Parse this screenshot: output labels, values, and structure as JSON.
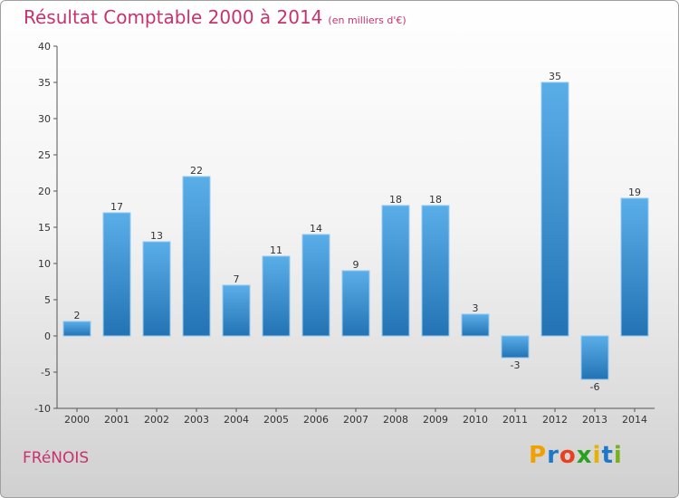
{
  "header": {
    "title": "Résultat Comptable 2000 à 2014",
    "subtitle": "(en milliers d'€)"
  },
  "footer": {
    "commune": "FRéNOIS",
    "logo": {
      "letters": [
        "P",
        "r",
        "o",
        "x",
        "i",
        "t",
        "i"
      ],
      "colors": [
        "#f0a000",
        "#1e78c8",
        "#e84020",
        "#2aa020",
        "#e8b000",
        "#1e78c8",
        "#7ab020"
      ]
    }
  },
  "chart_data": {
    "type": "bar",
    "title": "Résultat Comptable 2000 à 2014",
    "subtitle": "(en milliers d'€)",
    "categories": [
      "2000",
      "2001",
      "2002",
      "2003",
      "2004",
      "2005",
      "2006",
      "2007",
      "2008",
      "2009",
      "2010",
      "2011",
      "2012",
      "2013",
      "2014"
    ],
    "values": [
      2,
      17,
      13,
      22,
      7,
      11,
      14,
      9,
      18,
      18,
      3,
      -3,
      35,
      -6,
      19
    ],
    "value_labels": [
      "2",
      "17",
      "13",
      "22",
      "7",
      "11",
      "14",
      "9",
      "18",
      "18",
      "3",
      "-3",
      "35",
      "-6",
      "19"
    ],
    "ylim": [
      -10,
      40
    ],
    "yticks": [
      -10,
      -5,
      0,
      5,
      10,
      15,
      20,
      25,
      30,
      35,
      40
    ],
    "ytick_labels": [
      "-10",
      "-5",
      "0",
      "5",
      "10",
      "15",
      "20",
      "25",
      "30",
      "35",
      "40"
    ],
    "xlabel": "",
    "ylabel": "",
    "grid": false,
    "colors": {
      "bar_light": "#5aaee8",
      "bar_dark": "#2373b4",
      "axis": "#555555"
    }
  }
}
